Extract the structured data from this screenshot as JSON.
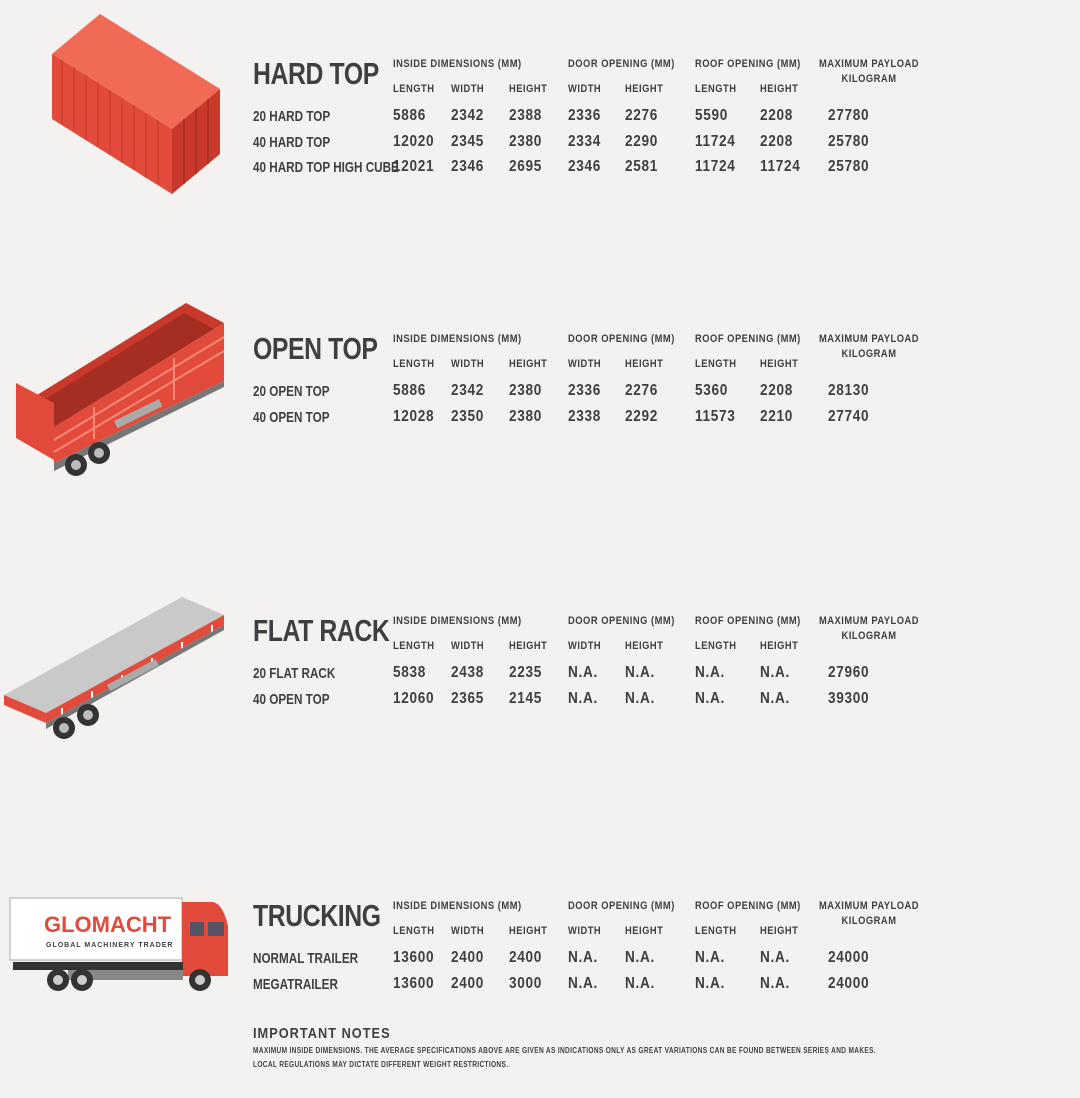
{
  "colors": {
    "accent": "#e24b3b",
    "text": "#3d3f42",
    "background": "#f3f2f0",
    "flat_rack": "#c9c9c9"
  },
  "column_groups": {
    "inside": "INSIDE DIMENSIONS (MM)",
    "door": "DOOR OPENING (MM)",
    "roof": "ROOF OPENING (MM)",
    "payload_line1": "MAXIMUM PAYLOAD",
    "payload_line2": "KILOGRAM"
  },
  "sub_headers": {
    "inside_length": "LENGTH",
    "inside_width": "WIDTH",
    "inside_height": "HEIGHT",
    "door_width": "WIDTH",
    "door_height": "HEIGHT",
    "roof_length": "LENGTH",
    "roof_height": "HEIGHT"
  },
  "sections": [
    {
      "title": "HARD TOP",
      "icon": "shipping-container-icon",
      "rows": [
        {
          "label": "20 HARD TOP",
          "values": [
            "5886",
            "2342",
            "2388",
            "2336",
            "2276",
            "5590",
            "2208",
            "27780"
          ]
        },
        {
          "label": "40 HARD TOP",
          "values": [
            "12020",
            "2345",
            "2380",
            "2334",
            "2290",
            "11724",
            "2208",
            "25780"
          ]
        },
        {
          "label": "40 HARD TOP HIGH CUBE",
          "values": [
            "12021",
            "2346",
            "2695",
            "2346",
            "2581",
            "11724",
            "11724",
            "25780"
          ]
        }
      ]
    },
    {
      "title": "OPEN TOP",
      "icon": "open-top-trailer-icon",
      "rows": [
        {
          "label": "20 OPEN TOP",
          "values": [
            "5886",
            "2342",
            "2380",
            "2336",
            "2276",
            "5360",
            "2208",
            "28130"
          ]
        },
        {
          "label": "40 OPEN TOP",
          "values": [
            "12028",
            "2350",
            "2380",
            "2338",
            "2292",
            "11573",
            "2210",
            "27740"
          ]
        }
      ]
    },
    {
      "title": "FLAT RACK",
      "icon": "flat-rack-trailer-icon",
      "rows": [
        {
          "label": "20 FLAT RACK",
          "values": [
            "5838",
            "2438",
            "2235",
            "N.A.",
            "N.A.",
            "N.A.",
            "N.A.",
            "27960"
          ]
        },
        {
          "label": "40 OPEN TOP",
          "values": [
            "12060",
            "2365",
            "2145",
            "N.A.",
            "N.A.",
            "N.A.",
            "N.A.",
            "39300"
          ]
        }
      ]
    },
    {
      "title": "TRUCKING",
      "icon": "truck-icon",
      "rows": [
        {
          "label": "NORMAL TRAILER",
          "values": [
            "13600",
            "2400",
            "2400",
            "N.A.",
            "N.A.",
            "N.A.",
            "N.A.",
            "24000"
          ]
        },
        {
          "label": "MEGATRAILER",
          "values": [
            "13600",
            "2400",
            "3000",
            "N.A.",
            "N.A.",
            "N.A.",
            "N.A.",
            "24000"
          ]
        }
      ]
    }
  ],
  "truck_logo": {
    "name": "GLOMACHT",
    "tagline": "GLOBAL MACHINERY TRADER"
  },
  "notes": {
    "title": "IMPORTANT NOTES",
    "line1": "MAXIMUM INSIDE DIMENSIONS. THE AVERAGE SPECIFICATIONS ABOVE ARE GIVEN AS INDICATIONS ONLY AS GREAT VARIATIONS CAN BE FOUND BETWEEN SERIES AND MAKES.",
    "line2": "LOCAL REGULATIONS MAY DICTATE DIFFERENT WEIGHT RESTRICTIONS."
  }
}
